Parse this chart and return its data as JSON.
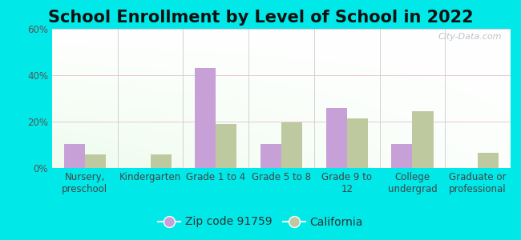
{
  "title": "School Enrollment by Level of School in 2022",
  "categories": [
    "Nursery,\npreschool",
    "Kindergarten",
    "Grade 1 to 4",
    "Grade 5 to 8",
    "Grade 9 to\n12",
    "College\nundergrad",
    "Graduate or\nprofessional"
  ],
  "zip_values": [
    10.5,
    0.0,
    43.0,
    10.5,
    26.0,
    10.5,
    0.0
  ],
  "ca_values": [
    6.0,
    6.0,
    19.0,
    19.5,
    21.5,
    24.5,
    6.5
  ],
  "zip_color": "#c8a0d8",
  "ca_color": "#bec9a0",
  "background_outer": "#00e8e8",
  "ylim": [
    0,
    60
  ],
  "yticks": [
    0,
    20,
    40,
    60
  ],
  "ytick_labels": [
    "0%",
    "20%",
    "40%",
    "60%"
  ],
  "legend_zip_label": "Zip code 91759",
  "legend_ca_label": "California",
  "watermark": "City-Data.com",
  "title_fontsize": 15,
  "tick_fontsize": 8.5,
  "legend_fontsize": 10,
  "bar_width": 0.32
}
